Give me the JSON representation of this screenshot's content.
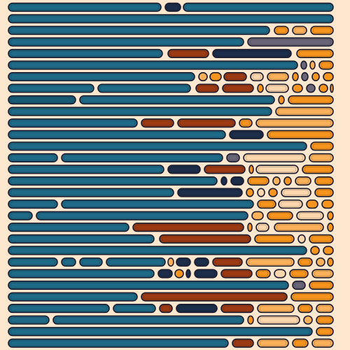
{
  "palette": {
    "background": "#fde8cf",
    "outline": "#1a1a2e",
    "teal": "#1e6a87",
    "teal_dark": "#175a73",
    "navy": "#1c2e4a",
    "rust": "#9c3a14",
    "rust_dark": "#7a2e10",
    "orange": "#f7941d",
    "light_orange": "#fbb15a",
    "peach": "#fcd6ac",
    "slate": "#6b6677"
  },
  "row_count": 29,
  "style": "rounded horizontal capsules with dark outlines; long teal bars on the left, short orange and rust pills toward the right"
}
